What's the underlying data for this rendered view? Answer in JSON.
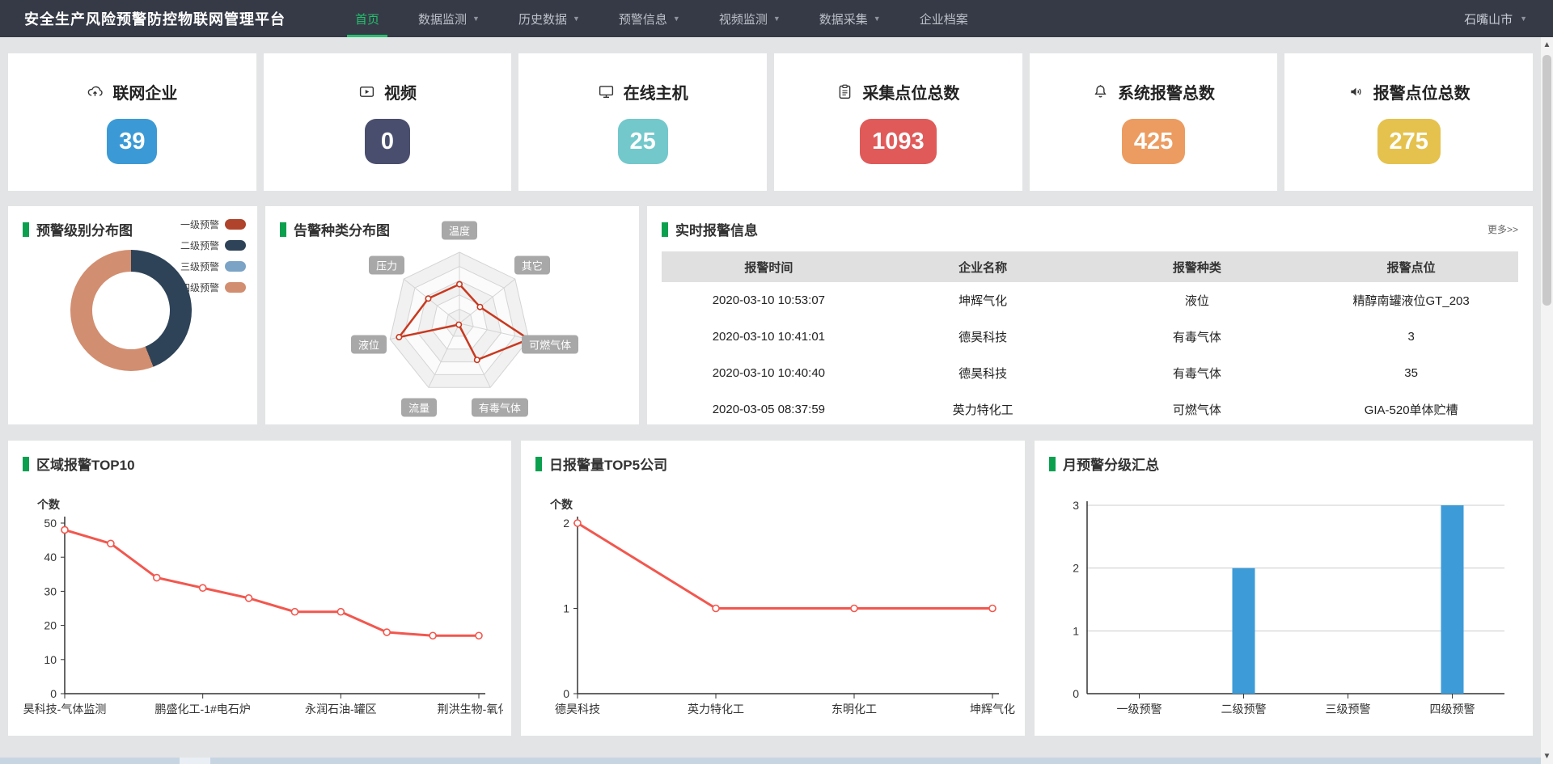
{
  "navbar": {
    "title": "安全生产风险预警防控物联网管理平台",
    "items": [
      {
        "label": "首页",
        "active": true,
        "has_dropdown": false
      },
      {
        "label": "数据监测",
        "active": false,
        "has_dropdown": true
      },
      {
        "label": "历史数据",
        "active": false,
        "has_dropdown": true
      },
      {
        "label": "预警信息",
        "active": false,
        "has_dropdown": true
      },
      {
        "label": "视频监测",
        "active": false,
        "has_dropdown": true
      },
      {
        "label": "数据采集",
        "active": false,
        "has_dropdown": true
      },
      {
        "label": "企业档案",
        "active": false,
        "has_dropdown": false
      }
    ],
    "region": "石嘴山市"
  },
  "stat_cards": [
    {
      "label": "联网企业",
      "value": "39",
      "color": "#3b9ad6",
      "icon": "cloud-upload-icon"
    },
    {
      "label": "视频",
      "value": "0",
      "color": "#4a4e6e",
      "icon": "video-icon"
    },
    {
      "label": "在线主机",
      "value": "25",
      "color": "#72c8cb",
      "icon": "monitor-icon"
    },
    {
      "label": "采集点位总数",
      "value": "1093",
      "color": "#e05a5a",
      "icon": "clipboard-icon"
    },
    {
      "label": "系统报警总数",
      "value": "425",
      "color": "#ec9c60",
      "icon": "bell-icon"
    },
    {
      "label": "报警点位总数",
      "value": "275",
      "color": "#e5c24e",
      "icon": "speaker-icon"
    }
  ],
  "panels": {
    "level_dist": {
      "title": "预警级别分布图"
    },
    "type_dist": {
      "title": "告警种类分布图"
    },
    "realtime": {
      "title": "实时报警信息",
      "more_label": "更多>>",
      "columns": [
        "报警时间",
        "企业名称",
        "报警种类",
        "报警点位"
      ],
      "rows": [
        [
          "2020-03-10 10:53:07",
          "坤辉气化",
          "液位",
          "精醇南罐液位GT_203"
        ],
        [
          "2020-03-10 10:41:01",
          "德昊科技",
          "有毒气体",
          "3"
        ],
        [
          "2020-03-10 10:40:40",
          "德昊科技",
          "有毒气体",
          "35"
        ],
        [
          "2020-03-05 08:37:59",
          "英力特化工",
          "可燃气体",
          "GIA-520单体贮槽"
        ]
      ]
    },
    "region_top10": {
      "title": "区域报警TOP10"
    },
    "daily_top5": {
      "title": "日报警量TOP5公司"
    },
    "monthly": {
      "title": "月预警分级汇总"
    }
  },
  "chart_data": [
    {
      "id": "alarm_level_donut",
      "type": "pie",
      "title": "预警级别分布图",
      "donut": true,
      "labels": [
        "一级预警",
        "二级预警",
        "三级预警",
        "四级预警"
      ],
      "values": [
        0,
        44,
        0,
        56
      ],
      "unit": "percent",
      "colors": [
        "#b0432c",
        "#2e4358",
        "#7ba3c6",
        "#d28e70"
      ],
      "legend_position": "top-right"
    },
    {
      "id": "alarm_type_radar",
      "type": "radar",
      "title": "告警种类分布图",
      "axes": [
        "温度",
        "其它",
        "可燃气体",
        "有毒气体",
        "流量",
        "液位",
        "压力"
      ],
      "values": [
        0.55,
        0.37,
        1.0,
        0.57,
        0.02,
        0.87,
        0.56
      ],
      "max": 1,
      "levels": 5,
      "line_color": "#c9391f"
    },
    {
      "id": "region_top10",
      "type": "line",
      "title": "区域报警TOP10",
      "ylabel": "个数",
      "values": [
        48,
        44,
        34,
        31,
        28,
        24,
        24,
        18,
        17,
        17
      ],
      "x_tick_labels": {
        "0": "昊科技-气体监测",
        "3": "鹏盛化工-1#电石炉",
        "6": "永润石油-罐区",
        "9": "荆洪生物-氧化反"
      },
      "ylim": [
        0,
        50
      ],
      "yticks": [
        0,
        10,
        20,
        30,
        40,
        50
      ],
      "color": "#f2574e"
    },
    {
      "id": "daily_top5",
      "type": "line",
      "title": "日报警量TOP5公司",
      "ylabel": "个数",
      "categories": [
        "德昊科技",
        "英力特化工",
        "东明化工",
        "坤辉气化"
      ],
      "values": [
        2,
        1,
        1,
        1
      ],
      "ylim": [
        0,
        2
      ],
      "yticks": [
        0,
        1,
        2
      ],
      "color": "#f2574e"
    },
    {
      "id": "monthly_levels",
      "type": "bar",
      "title": "月预警分级汇总",
      "categories": [
        "一级预警",
        "二级预警",
        "三级预警",
        "四级预警"
      ],
      "values": [
        0,
        2,
        0,
        3
      ],
      "ylim": [
        0,
        3
      ],
      "yticks": [
        0,
        1,
        2,
        3
      ],
      "grid": true,
      "color": "#3d9bd8"
    }
  ]
}
